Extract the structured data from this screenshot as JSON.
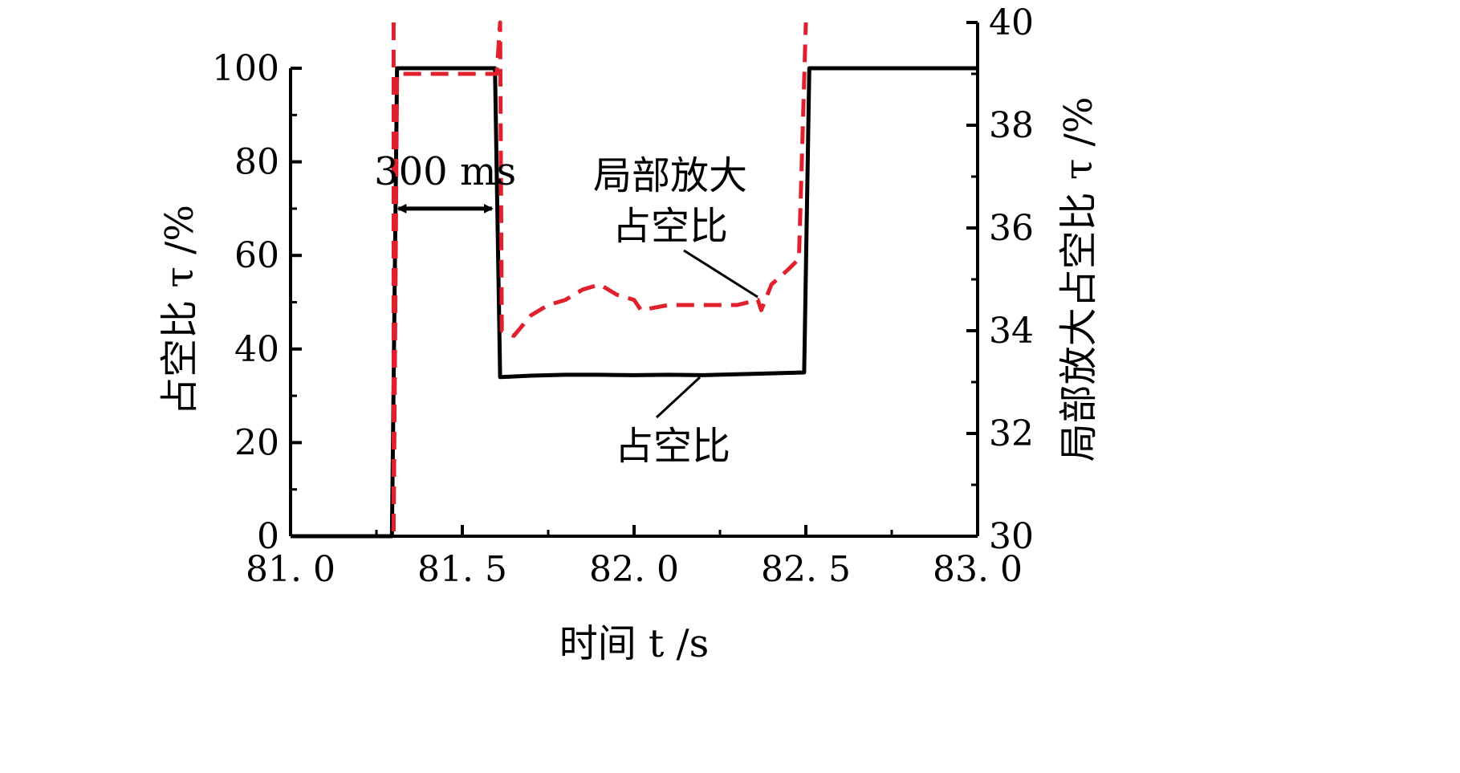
{
  "chart_data": {
    "type": "line",
    "xlabel": "时间 t /s",
    "ylabel_left": "占空比 τ /%",
    "ylabel_right": "局部放大占空比 τ /%",
    "xlim": [
      81.0,
      83.0
    ],
    "ylim_left": [
      0,
      100
    ],
    "ylim_right": [
      30,
      40
    ],
    "x_ticks": [
      81.0,
      81.5,
      82.0,
      82.5,
      83.0
    ],
    "x_tick_labels": [
      "81. 0",
      "81. 5",
      "82. 0",
      "82. 5",
      "83. 0"
    ],
    "y_left_ticks": [
      0,
      20,
      40,
      60,
      80,
      100
    ],
    "y_left_tick_labels": [
      "0",
      "20",
      "40",
      "60",
      "80",
      "100"
    ],
    "y_right_ticks": [
      30,
      32,
      34,
      36,
      38,
      40
    ],
    "y_right_tick_labels": [
      "30",
      "32",
      "34",
      "36",
      "38",
      "40"
    ],
    "grid": false,
    "series": [
      {
        "name": "占空比",
        "axis": "left",
        "color": "#000000",
        "style": "solid",
        "points": [
          [
            81.0,
            0
          ],
          [
            81.295,
            0
          ],
          [
            81.31,
            100
          ],
          [
            81.595,
            100
          ],
          [
            81.61,
            34
          ],
          [
            81.7,
            34.3
          ],
          [
            81.8,
            34.5
          ],
          [
            81.9,
            34.5
          ],
          [
            82.0,
            34.4
          ],
          [
            82.1,
            34.5
          ],
          [
            82.2,
            34.4
          ],
          [
            82.3,
            34.6
          ],
          [
            82.4,
            34.8
          ],
          [
            82.495,
            35
          ],
          [
            82.51,
            100
          ],
          [
            83.0,
            100
          ]
        ]
      },
      {
        "name": "局部放大占空比",
        "axis": "right",
        "color": "#e0202c",
        "style": "dashed",
        "points": [
          [
            81.3,
            40
          ],
          [
            81.3,
            30
          ],
          [
            81.31,
            39
          ],
          [
            81.6,
            39
          ],
          [
            81.61,
            40
          ],
          [
            81.615,
            34
          ],
          [
            81.65,
            33.9
          ],
          [
            81.7,
            34.3
          ],
          [
            81.75,
            34.5
          ],
          [
            81.8,
            34.6
          ],
          [
            81.85,
            34.8
          ],
          [
            81.9,
            34.9
          ],
          [
            81.95,
            34.7
          ],
          [
            82.0,
            34.6
          ],
          [
            82.02,
            34.4
          ],
          [
            82.1,
            34.5
          ],
          [
            82.2,
            34.5
          ],
          [
            82.3,
            34.5
          ],
          [
            82.36,
            34.6
          ],
          [
            82.37,
            34.4
          ],
          [
            82.4,
            34.9
          ],
          [
            82.45,
            35.2
          ],
          [
            82.48,
            35.4
          ],
          [
            82.5,
            40
          ]
        ]
      }
    ],
    "annotations": {
      "interval_label": "300 ms",
      "interval_x": [
        81.3,
        81.6
      ],
      "interval_y_left": 70,
      "dashed_label_line1": "局部放大",
      "dashed_label_line2": "占空比",
      "solid_label": "占空比"
    }
  }
}
